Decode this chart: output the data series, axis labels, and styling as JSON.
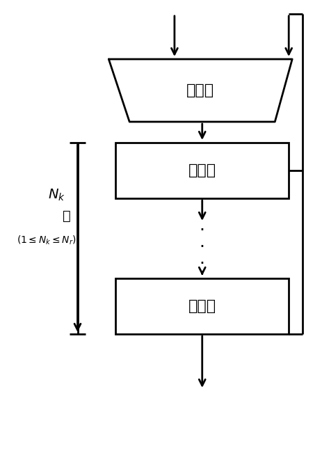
{
  "fig_width": 4.63,
  "fig_height": 6.84,
  "bg_color": "#ffffff",
  "selector_label": "选择器",
  "round_label": "轮变换",
  "dots": "···",
  "annotation_line1": "$N_k$",
  "annotation_line2": "轮",
  "annotation_line3": "$(1{\\leq}N_k{\\leq}N_r)$",
  "lw": 2.0,
  "arrow_lw": 2.0
}
